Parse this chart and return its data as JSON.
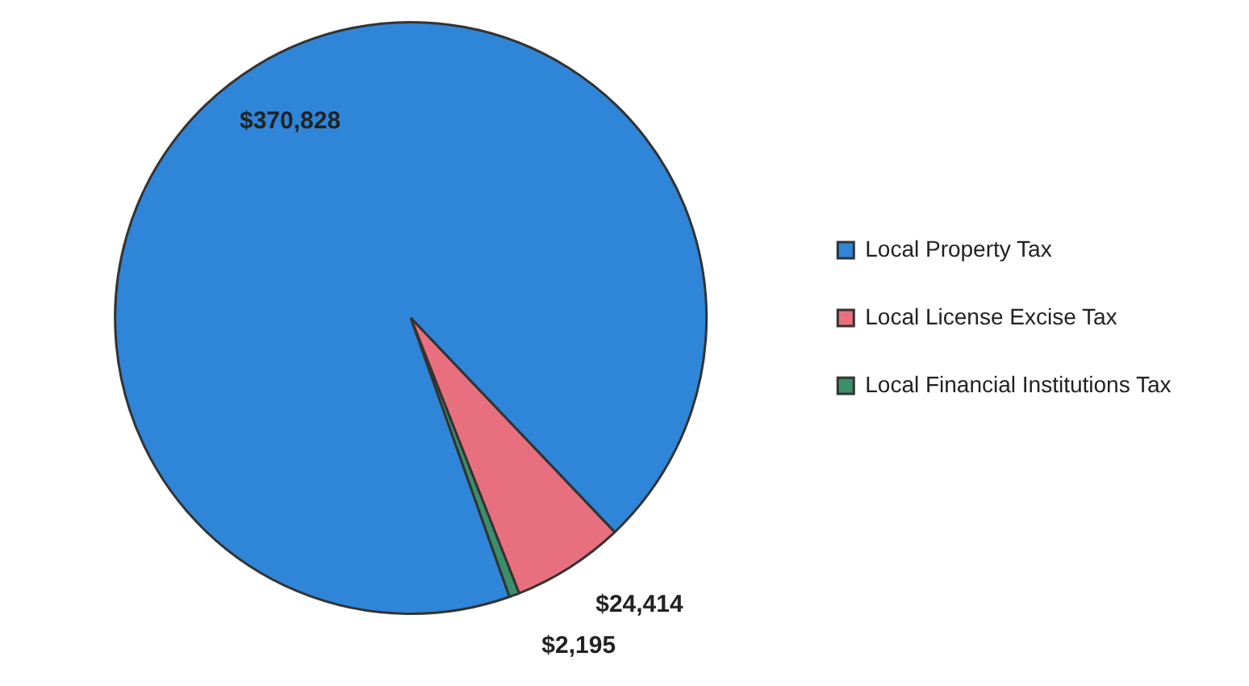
{
  "chart_data": {
    "type": "pie",
    "categories": [
      "Local Property Tax",
      "Local License Excise Tax",
      "Local Financial Institutions Tax"
    ],
    "values": [
      370828,
      24414,
      2195
    ],
    "colors": [
      "#2f86d8",
      "#e8707e",
      "#3d8f6c"
    ],
    "value_labels": [
      "$370,828",
      "$24,414",
      "$2,195"
    ],
    "legend": "right"
  }
}
